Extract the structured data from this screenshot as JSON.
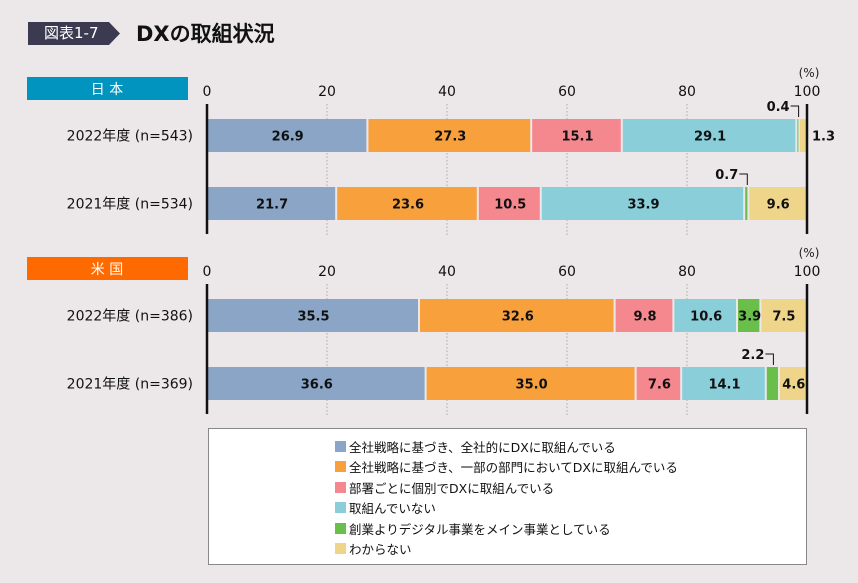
{
  "header": {
    "badge": "図表1-7",
    "title": "DXの取組状況"
  },
  "colors": [
    "#8aa5c5",
    "#f7a03c",
    "#f5888f",
    "#89ced9",
    "#6abf4b",
    "#eed58a"
  ],
  "chart_data": [
    {
      "type": "bar",
      "orientation": "horizontal-stacked",
      "title": "日 本",
      "title_color": "#0094be",
      "unit": "(%)",
      "xlim": [
        0,
        100
      ],
      "ticks": [
        "0",
        "20",
        "40",
        "60",
        "80",
        "100"
      ],
      "categories": [
        "2022年度 (n=543)",
        "2021年度 (n=534)"
      ],
      "series": [
        {
          "name": "全社戦略に基づき、全社的にDXに取組んでいる",
          "values": [
            26.9,
            21.7
          ]
        },
        {
          "name": "全社戦略に基づき、一部の部門においてDXに取組んでいる",
          "values": [
            27.3,
            23.6
          ]
        },
        {
          "name": "部署ごとに個別でDXに取組んでいる",
          "values": [
            15.1,
            10.5
          ]
        },
        {
          "name": "取組んでいない",
          "values": [
            29.1,
            33.9
          ]
        },
        {
          "name": "創業よりデジタル事業をメイン事業としている",
          "values": [
            0.4,
            0.7
          ]
        },
        {
          "name": "わからない",
          "values": [
            1.3,
            9.6
          ]
        }
      ]
    },
    {
      "type": "bar",
      "orientation": "horizontal-stacked",
      "title": "米 国",
      "title_color": "#ff6a00",
      "unit": "(%)",
      "xlim": [
        0,
        100
      ],
      "ticks": [
        "0",
        "20",
        "40",
        "60",
        "80",
        "100"
      ],
      "categories": [
        "2022年度 (n=386)",
        "2021年度 (n=369)"
      ],
      "series": [
        {
          "name": "全社戦略に基づき、全社的にDXに取組んでいる",
          "values": [
            35.5,
            36.6
          ]
        },
        {
          "name": "全社戦略に基づき、一部の部門においてDXに取組んでいる",
          "values": [
            32.6,
            35.0
          ]
        },
        {
          "name": "部署ごとに個別でDXに取組んでいる",
          "values": [
            9.8,
            7.6
          ]
        },
        {
          "name": "取組んでいない",
          "values": [
            10.6,
            14.1
          ]
        },
        {
          "name": "創業よりデジタル事業をメイン事業としている",
          "values": [
            3.9,
            2.2
          ]
        },
        {
          "name": "わからない",
          "values": [
            7.5,
            4.6
          ]
        }
      ]
    }
  ],
  "legend": [
    "全社戦略に基づき、全社的にDXに取組んでいる",
    "全社戦略に基づき、一部の部門においてDXに取組んでいる",
    "部署ごとに個別でDXに取組んでいる",
    "取組んでいない",
    "創業よりデジタル事業をメイン事業としている",
    "わからない"
  ]
}
